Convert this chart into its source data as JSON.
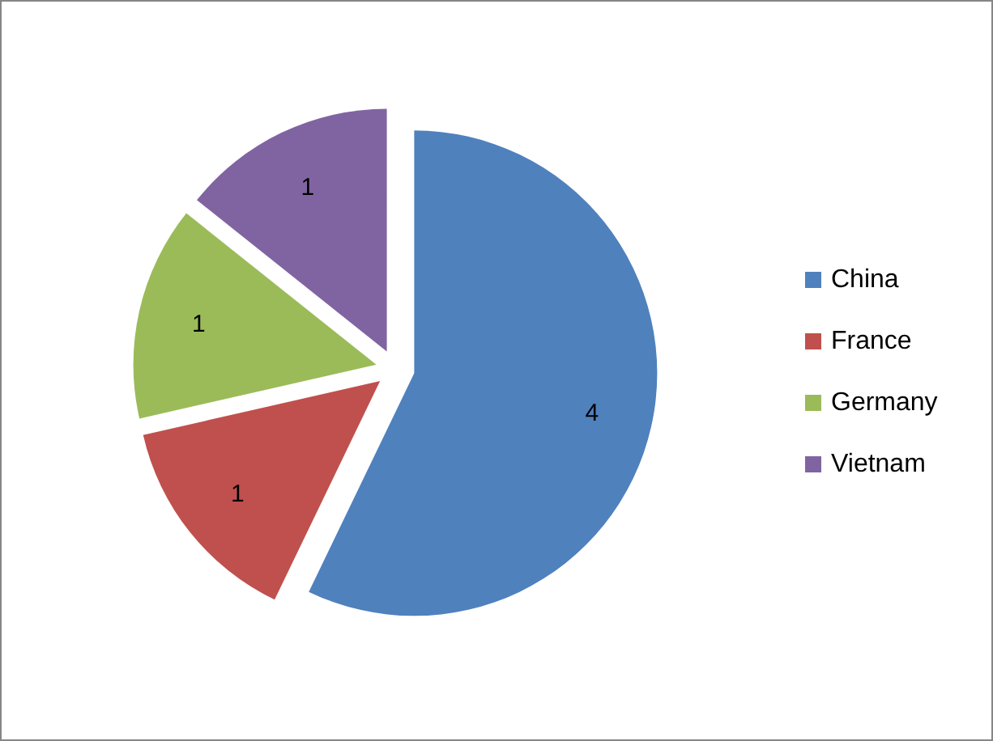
{
  "chart_data": {
    "type": "pie",
    "categories": [
      "China",
      "France",
      "Germany",
      "Vietnam"
    ],
    "values": [
      4,
      1,
      1,
      1
    ],
    "colors": [
      "#4f81bd",
      "#c0504d",
      "#9bbb59",
      "#8064a2"
    ],
    "data_labels": true,
    "legend": "right"
  }
}
